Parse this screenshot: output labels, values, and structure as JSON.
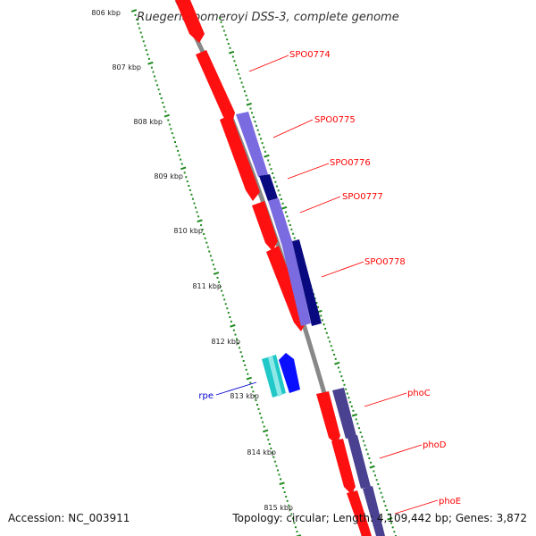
{
  "map": {
    "title": "Ruegeria pomeroyi DSS-3, complete genome",
    "backbone_color": "#888888",
    "tick_color": "#1f8a1f",
    "kbp_labels": [
      "806 kbp",
      "807 kbp",
      "808 kbp",
      "809 kbp",
      "810 kbp",
      "811 kbp",
      "812 kbp",
      "813 kbp",
      "814 kbp",
      "815 kbp"
    ]
  },
  "genes": [
    {
      "name": "SPO0774",
      "color": "#ff0000"
    },
    {
      "name": "SPO0775",
      "color": "#ff0000"
    },
    {
      "name": "SPO0776",
      "color": "#ff0000"
    },
    {
      "name": "SPO0777",
      "color": "#ff0000"
    },
    {
      "name": "SPO0778",
      "color": "#ff0000"
    },
    {
      "name": "rpe",
      "color": "#0000cc"
    },
    {
      "name": "phoC",
      "color": "#ff0000"
    },
    {
      "name": "phoD",
      "color": "#ff0000"
    },
    {
      "name": "phoE",
      "color": "#ff0000"
    }
  ],
  "colors": {
    "cds_red": "#ff1010",
    "cds_violet": "#7b6be0",
    "cds_navy": "#0a0a80",
    "cds_slate": "#4a4290",
    "cds_blue": "#0a10ff",
    "cds_cyan": "#20c8c8",
    "label_red": "#ff0000",
    "label_blue": "#0000cc"
  },
  "footer": {
    "accession": "Accession: NC_003911",
    "summary": "Topology: circular; Length: 4,109,442 bp; Genes: 3,872"
  }
}
